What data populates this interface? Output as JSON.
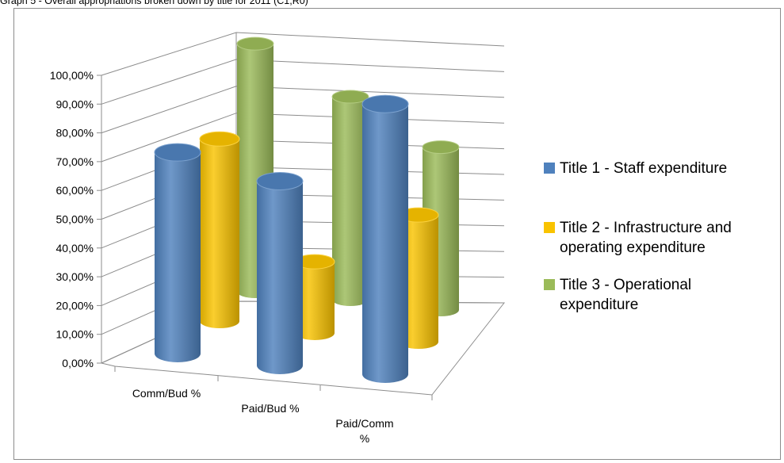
{
  "caption": "Graph 5 - Overall appropriations broken down by title for 2011 (C1,R0)",
  "chart_data": {
    "type": "bar",
    "style": "3d-cylinder",
    "categories": [
      "Comm/Bud %",
      "Paid/Bud %",
      "Paid/Comm %"
    ],
    "category_lines": [
      [
        "Comm/Bud %"
      ],
      [
        "Paid/Bud %"
      ],
      [
        "Paid/Comm",
        "%"
      ]
    ],
    "yticks": [
      "0,00%",
      "10,00%",
      "20,00%",
      "30,00%",
      "40,00%",
      "50,00%",
      "60,00%",
      "70,00%",
      "80,00%",
      "90,00%",
      "100,00%"
    ],
    "ylim": [
      0,
      100
    ],
    "grid": true,
    "legend_position": "right",
    "series": [
      {
        "name": "Title 1 - Staff expenditure",
        "name_lines": [
          "Title 1 - Staff expenditure"
        ],
        "color": "#4F81BD",
        "values": [
          71.5,
          65.5,
          96
        ]
      },
      {
        "name": "Title 2 - Infrastructure and operating expenditure",
        "name_lines": [
          "Title 2 - Infrastructure and",
          "operating expenditure"
        ],
        "color": "#F9C300",
        "values": [
          69,
          27,
          48
        ]
      },
      {
        "name": "Title 3 - Operational expenditure",
        "name_lines": [
          "Title 3 - Operational",
          "expenditure"
        ],
        "color": "#9BBB59",
        "values": [
          99,
          81,
          65
        ]
      }
    ]
  }
}
